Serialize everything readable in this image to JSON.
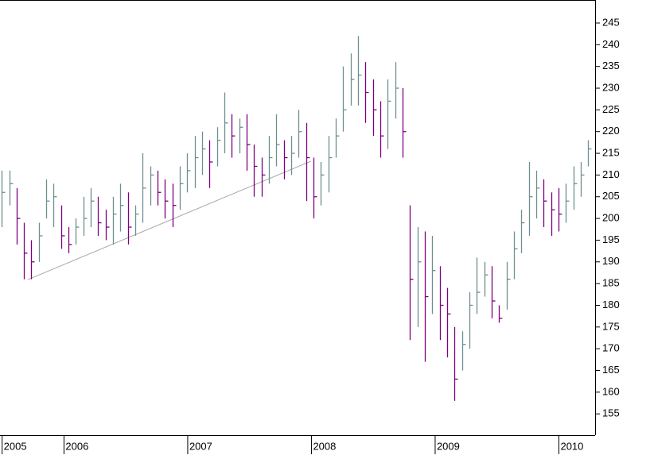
{
  "chart_data": {
    "type": "ohlc",
    "x": [
      2005.5,
      2005.56,
      2005.62,
      2005.68,
      2005.74,
      2005.8,
      2005.86,
      2005.92,
      2005.98,
      2006.04,
      2006.1,
      2006.16,
      2006.22,
      2006.28,
      2006.34,
      2006.4,
      2006.46,
      2006.52,
      2006.58,
      2006.64,
      2006.7,
      2006.76,
      2006.82,
      2006.88,
      2006.94,
      2007.0,
      2007.06,
      2007.12,
      2007.18,
      2007.24,
      2007.3,
      2007.36,
      2007.42,
      2007.48,
      2007.54,
      2007.6,
      2007.66,
      2007.72,
      2007.78,
      2007.84,
      2007.9,
      2007.96,
      2008.02,
      2008.08,
      2008.14,
      2008.2,
      2008.26,
      2008.32,
      2008.38,
      2008.44,
      2008.5,
      2008.56,
      2008.62,
      2008.68,
      2008.74,
      2008.8,
      2008.86,
      2008.92,
      2008.98,
      2009.04,
      2009.1,
      2009.16,
      2009.22,
      2009.28,
      2009.34,
      2009.4,
      2009.46,
      2009.52,
      2009.58,
      2009.64,
      2009.7,
      2009.76,
      2009.82,
      2009.88,
      2009.94,
      2010.0,
      2010.06,
      2010.12,
      2010.18,
      2010.24
    ],
    "high": [
      211,
      211,
      207,
      199,
      195,
      199,
      209,
      208,
      203,
      198,
      200,
      205,
      207,
      205,
      202,
      205,
      208,
      206,
      203,
      215,
      212,
      211,
      209,
      208,
      212,
      215,
      219,
      220,
      218,
      221,
      229,
      224,
      223,
      224,
      217,
      214,
      219,
      224,
      218,
      219,
      225,
      222,
      214,
      213,
      219,
      223,
      235,
      238,
      242,
      236,
      232,
      227,
      232,
      236,
      230,
      203,
      198,
      197,
      196,
      189,
      184,
      175,
      174,
      183,
      191,
      190,
      189,
      180,
      190,
      197,
      202,
      213,
      211,
      209,
      206,
      207,
      208,
      212,
      213,
      218
    ],
    "low": [
      198,
      203,
      194,
      186,
      186,
      190,
      200,
      198,
      193,
      192,
      194,
      196,
      198,
      196,
      195,
      194,
      197,
      194,
      196,
      199,
      203,
      203,
      200,
      198,
      202,
      206,
      207,
      210,
      207,
      212,
      215,
      214,
      215,
      211,
      205,
      205,
      208,
      212,
      209,
      210,
      214,
      204,
      200,
      203,
      206,
      214,
      220,
      226,
      226,
      222,
      219,
      214,
      216,
      223,
      214,
      172,
      175,
      167,
      178,
      172,
      168,
      158,
      165,
      170,
      178,
      182,
      177,
      176,
      179,
      186,
      192,
      196,
      200,
      198,
      196,
      197,
      199,
      202,
      205,
      212
    ],
    "close": [
      206,
      208,
      200,
      192,
      190,
      196,
      204,
      205,
      196,
      194,
      198,
      200,
      204,
      199,
      198,
      201,
      203,
      198,
      201,
      207,
      210,
      206,
      204,
      203,
      208,
      211,
      214,
      216,
      213,
      218,
      222,
      219,
      221,
      217,
      212,
      210,
      214,
      217,
      214,
      215,
      220,
      214,
      205,
      210,
      214,
      219,
      225,
      232,
      233,
      229,
      225,
      219,
      227,
      230,
      220,
      186,
      190,
      182,
      188,
      180,
      178,
      163,
      171,
      180,
      183,
      187,
      181,
      177,
      186,
      193,
      199,
      205,
      207,
      204,
      202,
      201,
      204,
      208,
      210,
      216
    ],
    "up_color": "#6e8f8f",
    "down_color": "#800080",
    "trendline": {
      "x": [
        2005.71,
        2008.0
      ],
      "y": [
        185.9,
        213.2
      ],
      "color": "#a8a8b0"
    },
    "xlim": [
      2005.486,
      2010.296
    ],
    "xticks": [
      {
        "value": 2005.5,
        "label": "2005"
      },
      2006,
      2007,
      2008,
      2009,
      2010
    ],
    "ylim": [
      150.1,
      250.3
    ],
    "yticks": [
      155,
      160,
      165,
      170,
      175,
      180,
      185,
      190,
      195,
      200,
      205,
      210,
      215,
      220,
      225,
      230,
      235,
      240,
      245
    ]
  }
}
